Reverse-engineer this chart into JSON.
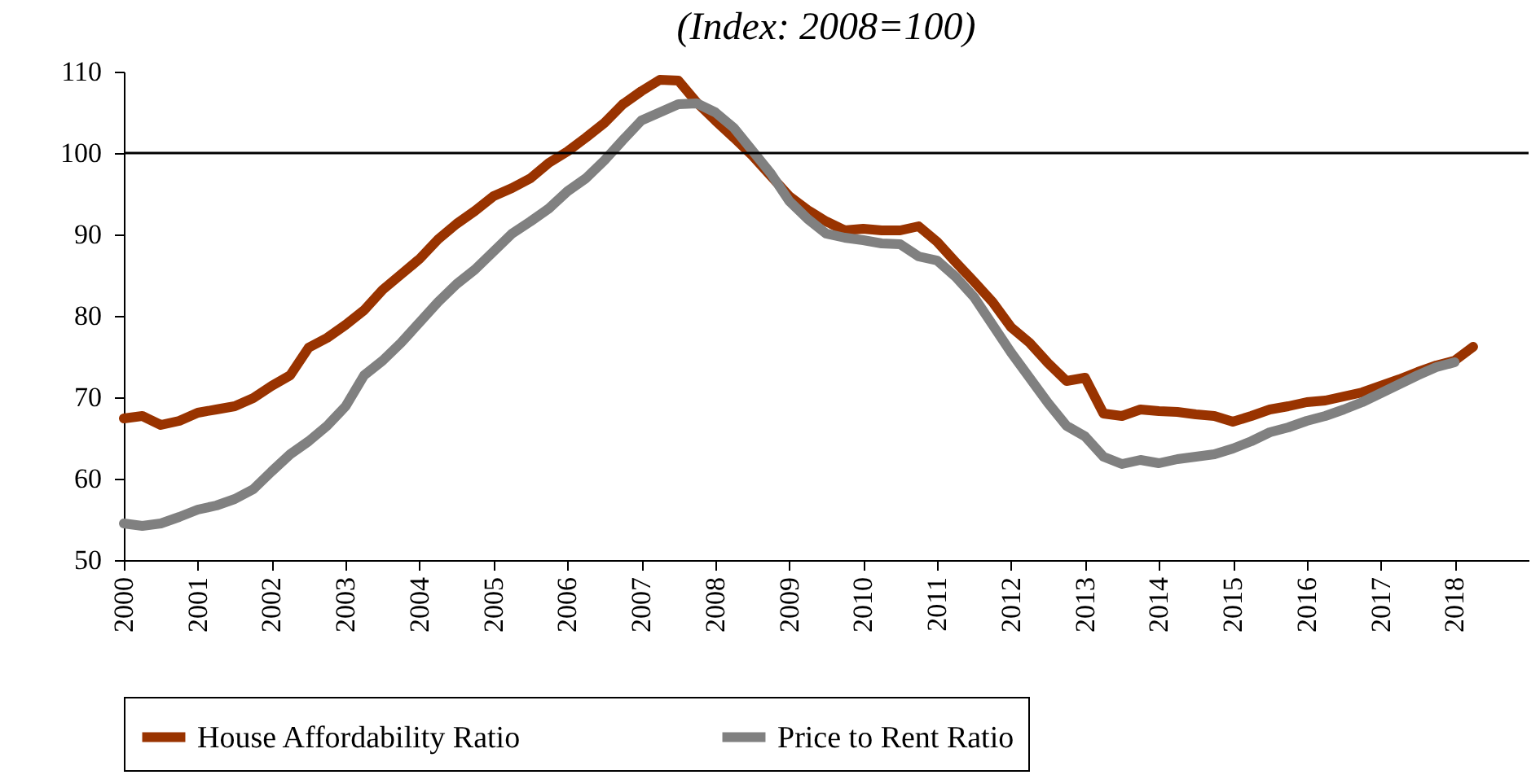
{
  "chart_data": {
    "type": "line",
    "title": "(Index: 2008=100)",
    "series": [
      {
        "name": "House Affordability Ratio",
        "color": "#993300",
        "x": [
          2000,
          2000.25,
          2000.5,
          2000.75,
          2001,
          2001.25,
          2001.5,
          2001.75,
          2002,
          2002.25,
          2002.5,
          2002.75,
          2003,
          2003.25,
          2003.5,
          2003.75,
          2004,
          2004.25,
          2004.5,
          2004.75,
          2005,
          2005.25,
          2005.5,
          2005.75,
          2006,
          2006.25,
          2006.5,
          2006.75,
          2007,
          2007.25,
          2007.5,
          2007.75,
          2008,
          2008.25,
          2008.5,
          2008.75,
          2009,
          2009.25,
          2009.5,
          2009.75,
          2010,
          2010.25,
          2010.5,
          2010.75,
          2011,
          2011.25,
          2011.5,
          2011.75,
          2012,
          2012.25,
          2012.5,
          2012.75,
          2013,
          2013.25,
          2013.5,
          2013.75,
          2014,
          2014.25,
          2014.5,
          2014.75,
          2015,
          2015.25,
          2015.5,
          2015.75,
          2016,
          2016.25,
          2016.5,
          2016.75,
          2017,
          2017.25,
          2017.5,
          2017.75,
          2018,
          2018.25
        ],
        "values": [
          67.4,
          67.7,
          66.6,
          67.1,
          68.1,
          68.5,
          68.9,
          69.9,
          71.4,
          72.7,
          76.1,
          77.3,
          78.9,
          80.7,
          83.2,
          85.1,
          87.0,
          89.4,
          91.3,
          92.9,
          94.7,
          95.7,
          96.9,
          98.8,
          100.2,
          101.9,
          103.7,
          106.0,
          107.6,
          109.0,
          108.9,
          106.2,
          104.0,
          101.9,
          99.7,
          97.2,
          94.7,
          93.0,
          91.6,
          90.5,
          90.7,
          90.5,
          90.5,
          91.0,
          89.1,
          86.6,
          84.2,
          81.7,
          78.6,
          76.7,
          74.2,
          72.0,
          72.4,
          68.0,
          67.7,
          68.5,
          68.3,
          68.2,
          67.9,
          67.7,
          67.0,
          67.7,
          68.5,
          68.9,
          69.4,
          69.6,
          70.1,
          70.6,
          71.4,
          72.2,
          73.1,
          73.9,
          74.5,
          76.2
        ]
      },
      {
        "name": "Price to Rent Ratio",
        "color": "#808080",
        "x": [
          2000,
          2000.25,
          2000.5,
          2000.75,
          2001,
          2001.25,
          2001.5,
          2001.75,
          2002,
          2002.25,
          2002.5,
          2002.75,
          2003,
          2003.25,
          2003.5,
          2003.75,
          2004,
          2004.25,
          2004.5,
          2004.75,
          2005,
          2005.25,
          2005.5,
          2005.75,
          2006,
          2006.25,
          2006.5,
          2006.75,
          2007,
          2007.25,
          2007.5,
          2007.75,
          2008,
          2008.25,
          2008.5,
          2008.75,
          2009,
          2009.25,
          2009.5,
          2009.75,
          2010,
          2010.25,
          2010.5,
          2010.75,
          2011,
          2011.25,
          2011.5,
          2011.75,
          2012,
          2012.25,
          2012.5,
          2012.75,
          2013,
          2013.25,
          2013.5,
          2013.75,
          2014,
          2014.25,
          2014.5,
          2014.75,
          2015,
          2015.25,
          2015.5,
          2015.75,
          2016,
          2016.25,
          2016.5,
          2016.75,
          2017,
          2017.25,
          2017.5,
          2017.75,
          2018
        ],
        "values": [
          54.5,
          54.2,
          54.5,
          55.3,
          56.2,
          56.7,
          57.5,
          58.7,
          60.9,
          63.0,
          64.6,
          66.5,
          68.9,
          72.7,
          74.5,
          76.7,
          79.2,
          81.7,
          83.9,
          85.7,
          87.9,
          90.1,
          91.6,
          93.2,
          95.3,
          96.9,
          99.1,
          101.6,
          104.0,
          105.0,
          106.0,
          106.1,
          105.0,
          103.1,
          100.3,
          97.5,
          94.1,
          91.9,
          90.1,
          89.6,
          89.3,
          88.9,
          88.8,
          87.3,
          86.8,
          84.8,
          82.3,
          78.9,
          75.5,
          72.4,
          69.3,
          66.5,
          65.2,
          62.7,
          61.8,
          62.3,
          61.9,
          62.4,
          62.7,
          63.0,
          63.7,
          64.6,
          65.7,
          66.3,
          67.1,
          67.7,
          68.5,
          69.4,
          70.5,
          71.6,
          72.7,
          73.7,
          74.3
        ]
      }
    ],
    "xlim": [
      2000,
      2019
    ],
    "xticks": [
      2000,
      2001,
      2002,
      2003,
      2004,
      2005,
      2006,
      2007,
      2008,
      2009,
      2010,
      2011,
      2012,
      2013,
      2014,
      2015,
      2016,
      2017,
      2018
    ],
    "ylim": [
      50,
      110
    ],
    "yticks": [
      50,
      60,
      70,
      80,
      90,
      100,
      110
    ],
    "ref_lines": [
      {
        "axis": "y",
        "value": 100,
        "color": "#000000"
      }
    ],
    "grid": false,
    "legend": "bottom",
    "marker": "none",
    "line_style": "solid"
  }
}
